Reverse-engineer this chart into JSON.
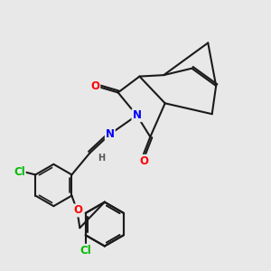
{
  "background_color": "#e8e8e8",
  "bond_color": "#1a1a1a",
  "bond_width": 1.5,
  "atom_colors": {
    "O": "#ff0000",
    "N": "#0000ff",
    "Cl": "#00bb00",
    "H": "#555555",
    "C": "#1a1a1a"
  },
  "font_size_atom": 8.5,
  "font_size_small": 7.0,
  "figsize": [
    3.0,
    3.0
  ],
  "dpi": 100
}
